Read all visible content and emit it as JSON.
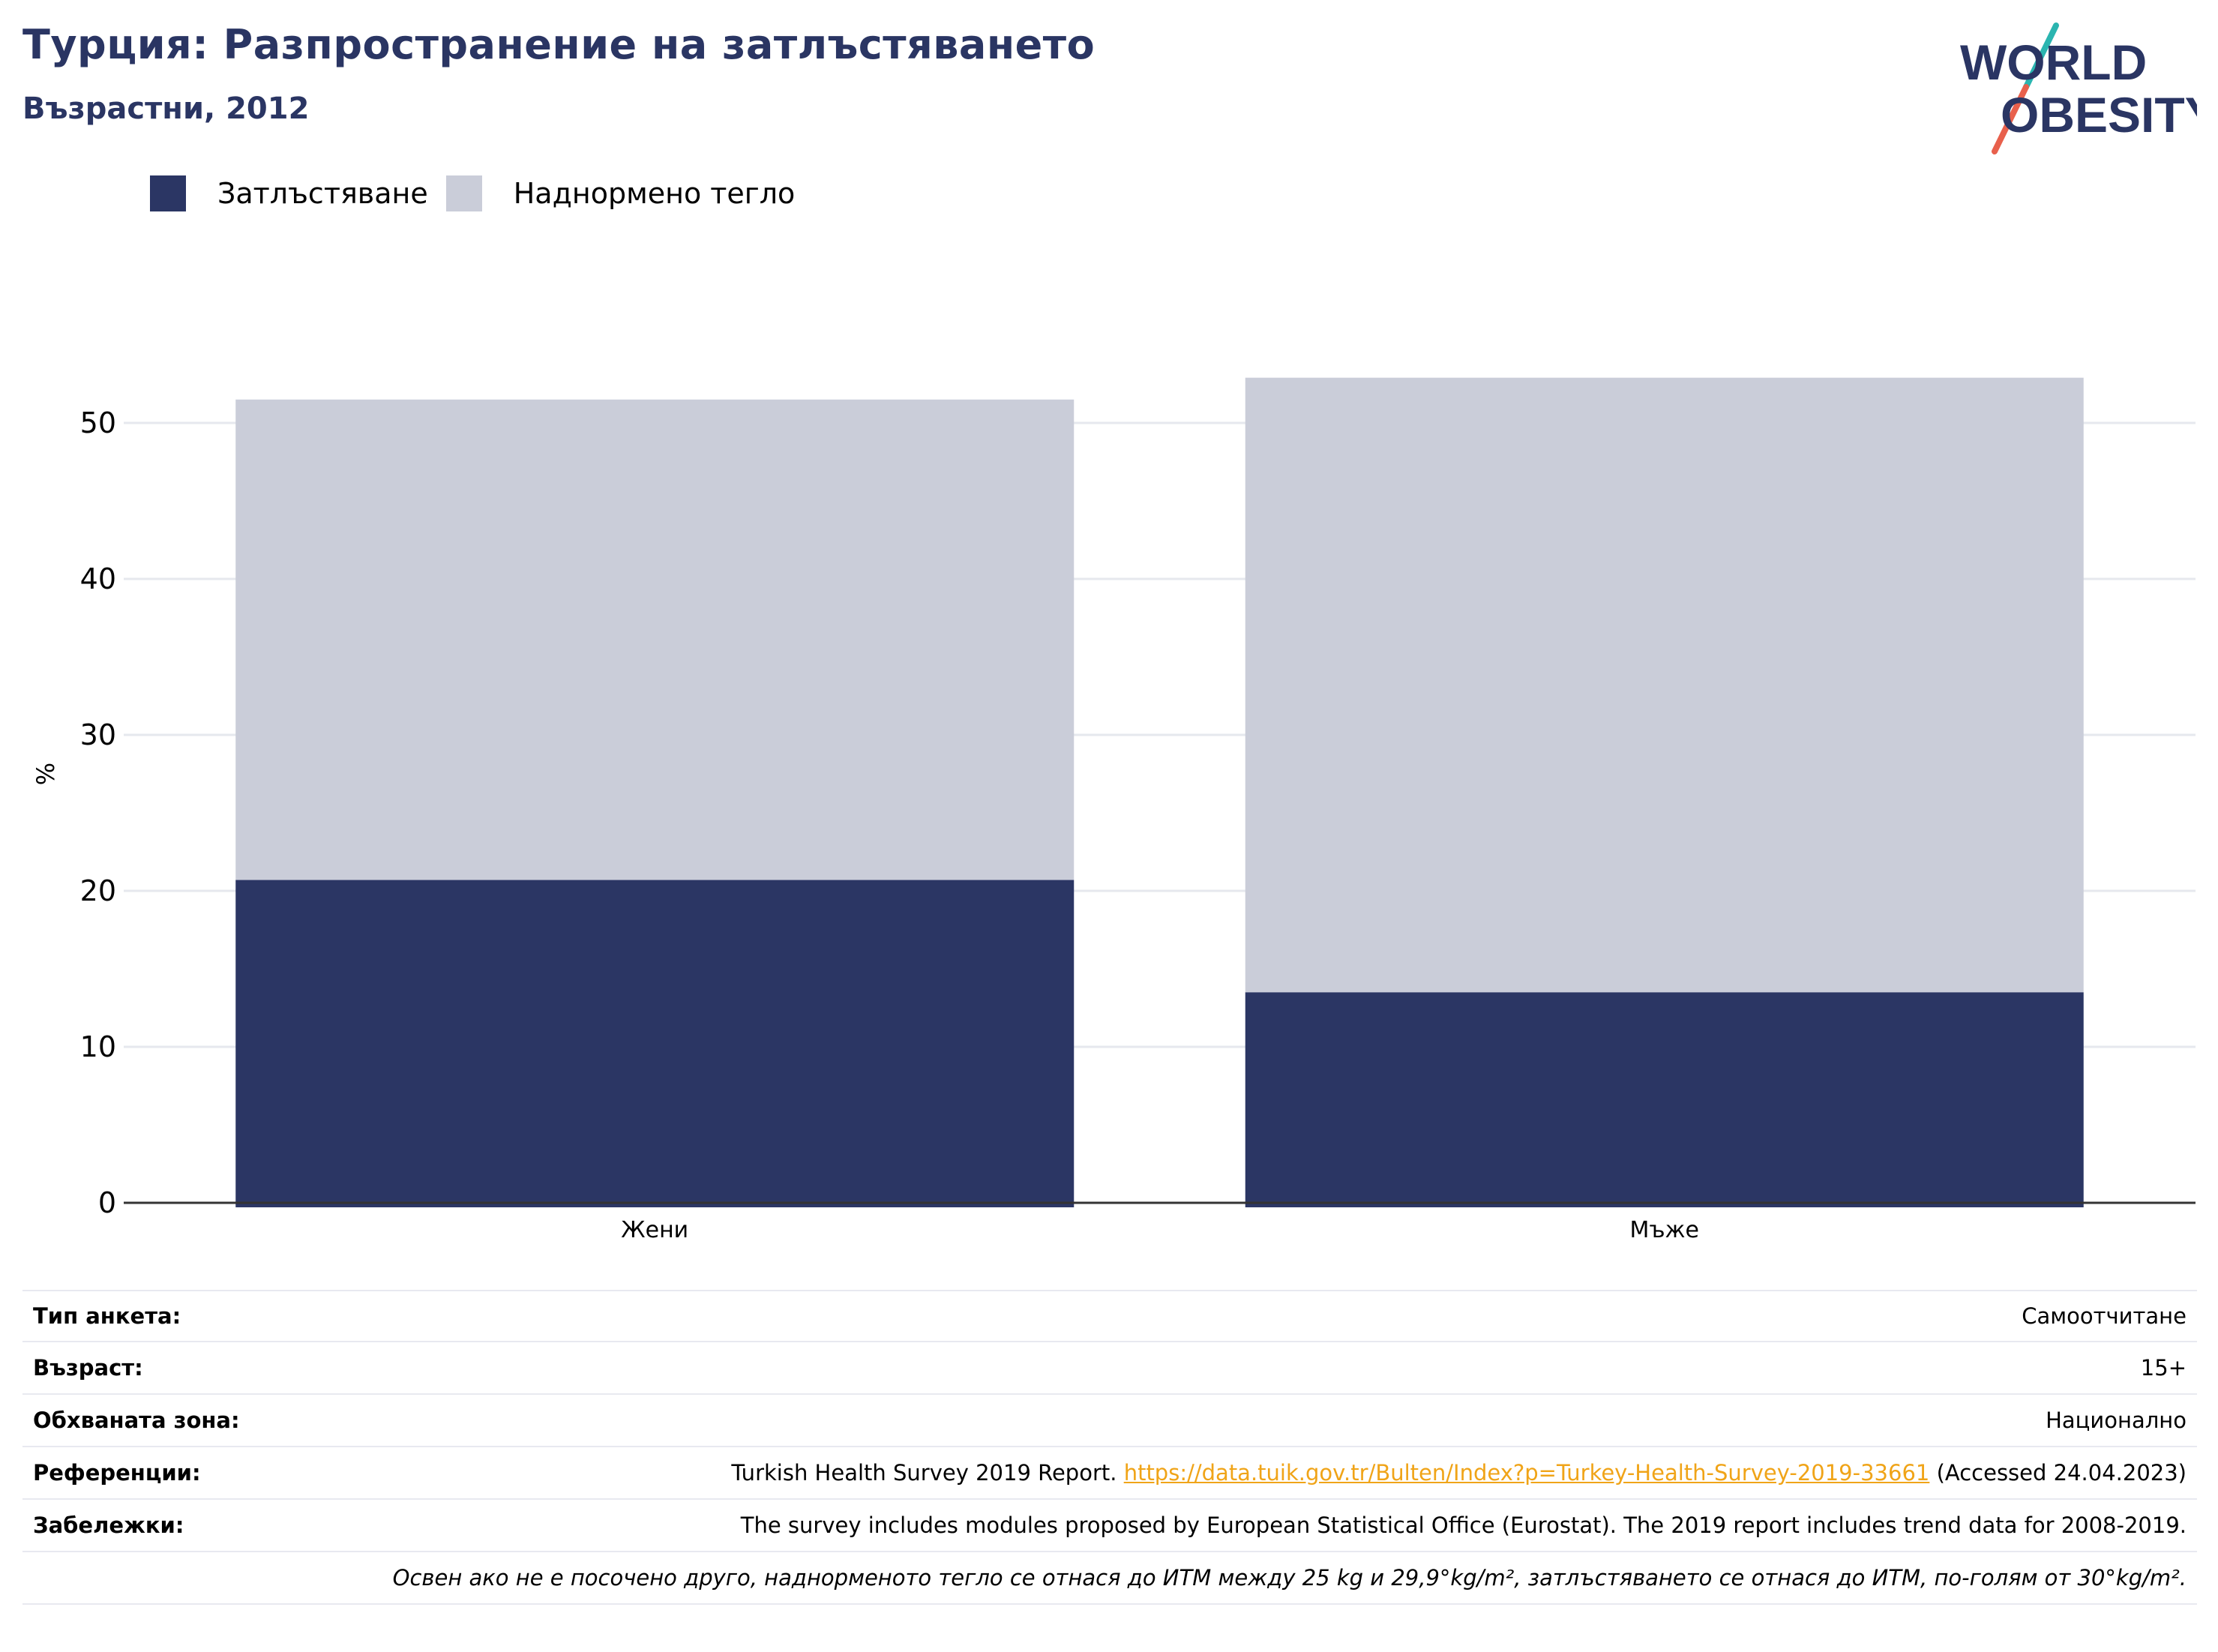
{
  "title": "Турция: Разпространение на затлъстяването",
  "subtitle": "Възрастни, 2012",
  "logo": {
    "line1": "WORLD",
    "line2": "OBESITY"
  },
  "colors": {
    "obesity": "#2b3664",
    "overweight": "#cacdd9",
    "title": "#2a3563",
    "link": "#f0a418",
    "grid": "#e6e8ee",
    "logo_teal": "#2bb5b0",
    "logo_coral": "#e8604c"
  },
  "legend": [
    {
      "label": "Затлъстяване",
      "color": "#2b3664"
    },
    {
      "label": "Наднормено тегло",
      "color": "#cacdd9"
    }
  ],
  "chart_data": {
    "type": "bar",
    "stacked": true,
    "categories": [
      "Жени",
      "Мъже"
    ],
    "series": [
      {
        "name": "Затлъстяване",
        "values": [
          20.7,
          13.5
        ]
      },
      {
        "name": "Наднормено тегло",
        "values": [
          30.8,
          39.4
        ]
      }
    ],
    "ylabel": "%",
    "ylim": [
      0,
      55
    ],
    "yticks": [
      0,
      10,
      20,
      30,
      40,
      50
    ],
    "grid": true,
    "legend_position": "top-left"
  },
  "info": {
    "survey_type": {
      "label": "Тип анкета:",
      "value": "Самоотчитане"
    },
    "age": {
      "label": "Възраст:",
      "value": "15+"
    },
    "area": {
      "label": "Обхваната зона:",
      "value": "Национално"
    },
    "references": {
      "label": "Референции:",
      "prefix": "Turkish Health Survey 2019 Report.",
      "link": "https://data.tuik.gov.tr/Bulten/Index?p=Turkey-Health-Survey-2019-33661",
      "suffix": "(Accessed 24.04.2023)"
    },
    "notes": {
      "label": "Забележки:",
      "value": "The survey includes modules proposed by European Statistical Office (Eurostat). The 2019 report includes trend data for 2008-2019."
    },
    "footnote": "Освен ако не е посочено друго, наднорменото тегло се отнася до ИТМ между 25 kg и 29,9°kg/m², затлъстяването се отнася до ИТМ, по-голям от 30°kg/m²."
  }
}
